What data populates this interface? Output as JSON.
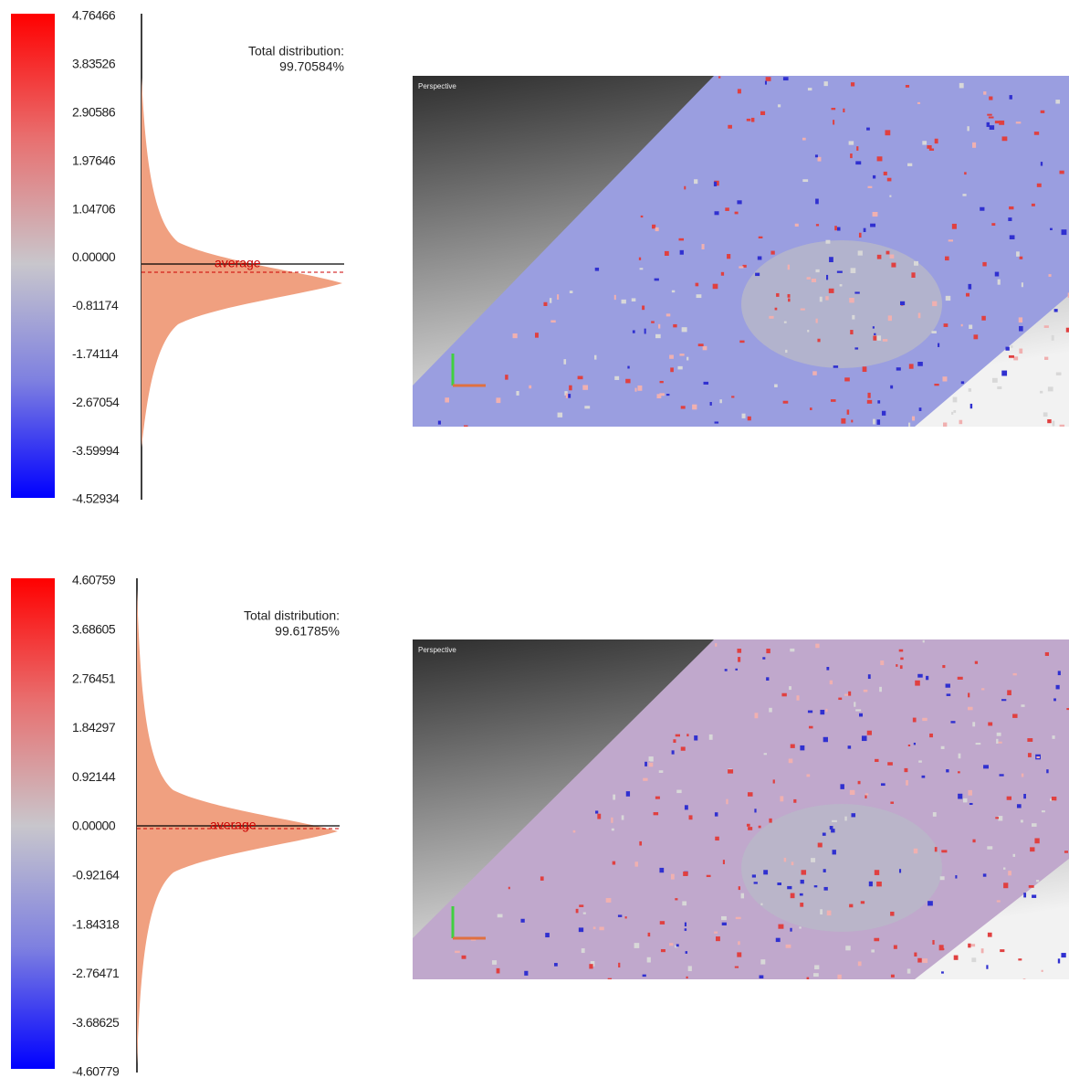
{
  "panels": [
    {
      "ticks": [
        "4.76466",
        "3.83526",
        "2.90586",
        "1.97646",
        "1.04706",
        "0.00000",
        "-0.81174",
        "-1.74114",
        "-2.67054",
        "-3.59994",
        "-4.52934"
      ],
      "distribution_label": "Total distribution:",
      "distribution_value": "99.70584%",
      "average_label": "average",
      "view_label": "Perspective"
    },
    {
      "ticks": [
        "4.60759",
        "3.68605",
        "2.76451",
        "1.84297",
        "0.92144",
        "0.00000",
        "-0.92164",
        "-1.84318",
        "-2.76471",
        "-3.68625",
        "-4.60779"
      ],
      "distribution_label": "Total distribution:",
      "distribution_value": "99.61785%",
      "average_label": "average",
      "view_label": "Perspective"
    }
  ]
}
